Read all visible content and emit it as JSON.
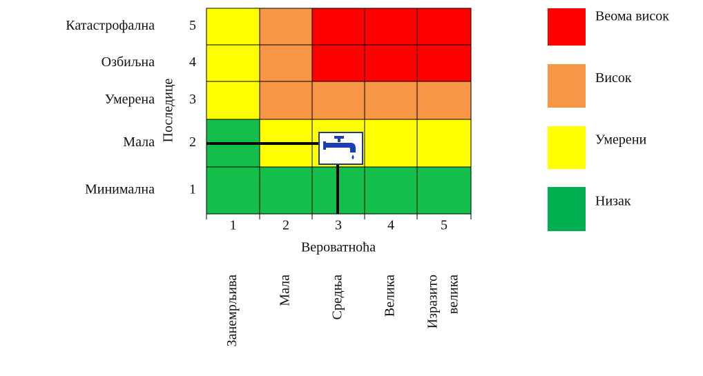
{
  "y_axis": {
    "title": "Последице",
    "rows": [
      {
        "label": "Катастрофална",
        "number": 5
      },
      {
        "label": "Озбиљна",
        "number": 4
      },
      {
        "label": "Умерена",
        "number": 3
      },
      {
        "label": "Мала",
        "number": 2
      },
      {
        "label": "Минимална",
        "number": 1
      }
    ]
  },
  "x_axis": {
    "title": "Вероватноћа",
    "numbers": [
      1,
      2,
      3,
      4,
      5
    ],
    "descriptors": [
      [
        "Занемрљива"
      ],
      [
        "Мала"
      ],
      [
        "Средња"
      ],
      [
        "Велика"
      ],
      [
        "Изразито",
        "велика"
      ]
    ]
  },
  "matrix": [
    [
      "#ffff00",
      "#f79646",
      "#ff0000",
      "#ff0000",
      "#ff0000"
    ],
    [
      "#ffff00",
      "#f79646",
      "#ff0000",
      "#ff0000",
      "#ff0000"
    ],
    [
      "#ffff00",
      "#f79646",
      "#f79646",
      "#f79646",
      "#f79646"
    ],
    [
      "#13be4a",
      "#ffff00",
      "#ffff00",
      "#ffff00",
      "#ffff00"
    ],
    [
      "#13be4a",
      "#13be4a",
      "#13be4a",
      "#13be4a",
      "#13be4a"
    ]
  ],
  "legend": [
    {
      "label": "Веома висок",
      "color": "#ff0000"
    },
    {
      "label": "Висок",
      "color": "#f79646"
    },
    {
      "label": "Умерени",
      "color": "#ffff00"
    },
    {
      "label": "Низак",
      "color": "#00b050"
    }
  ]
}
